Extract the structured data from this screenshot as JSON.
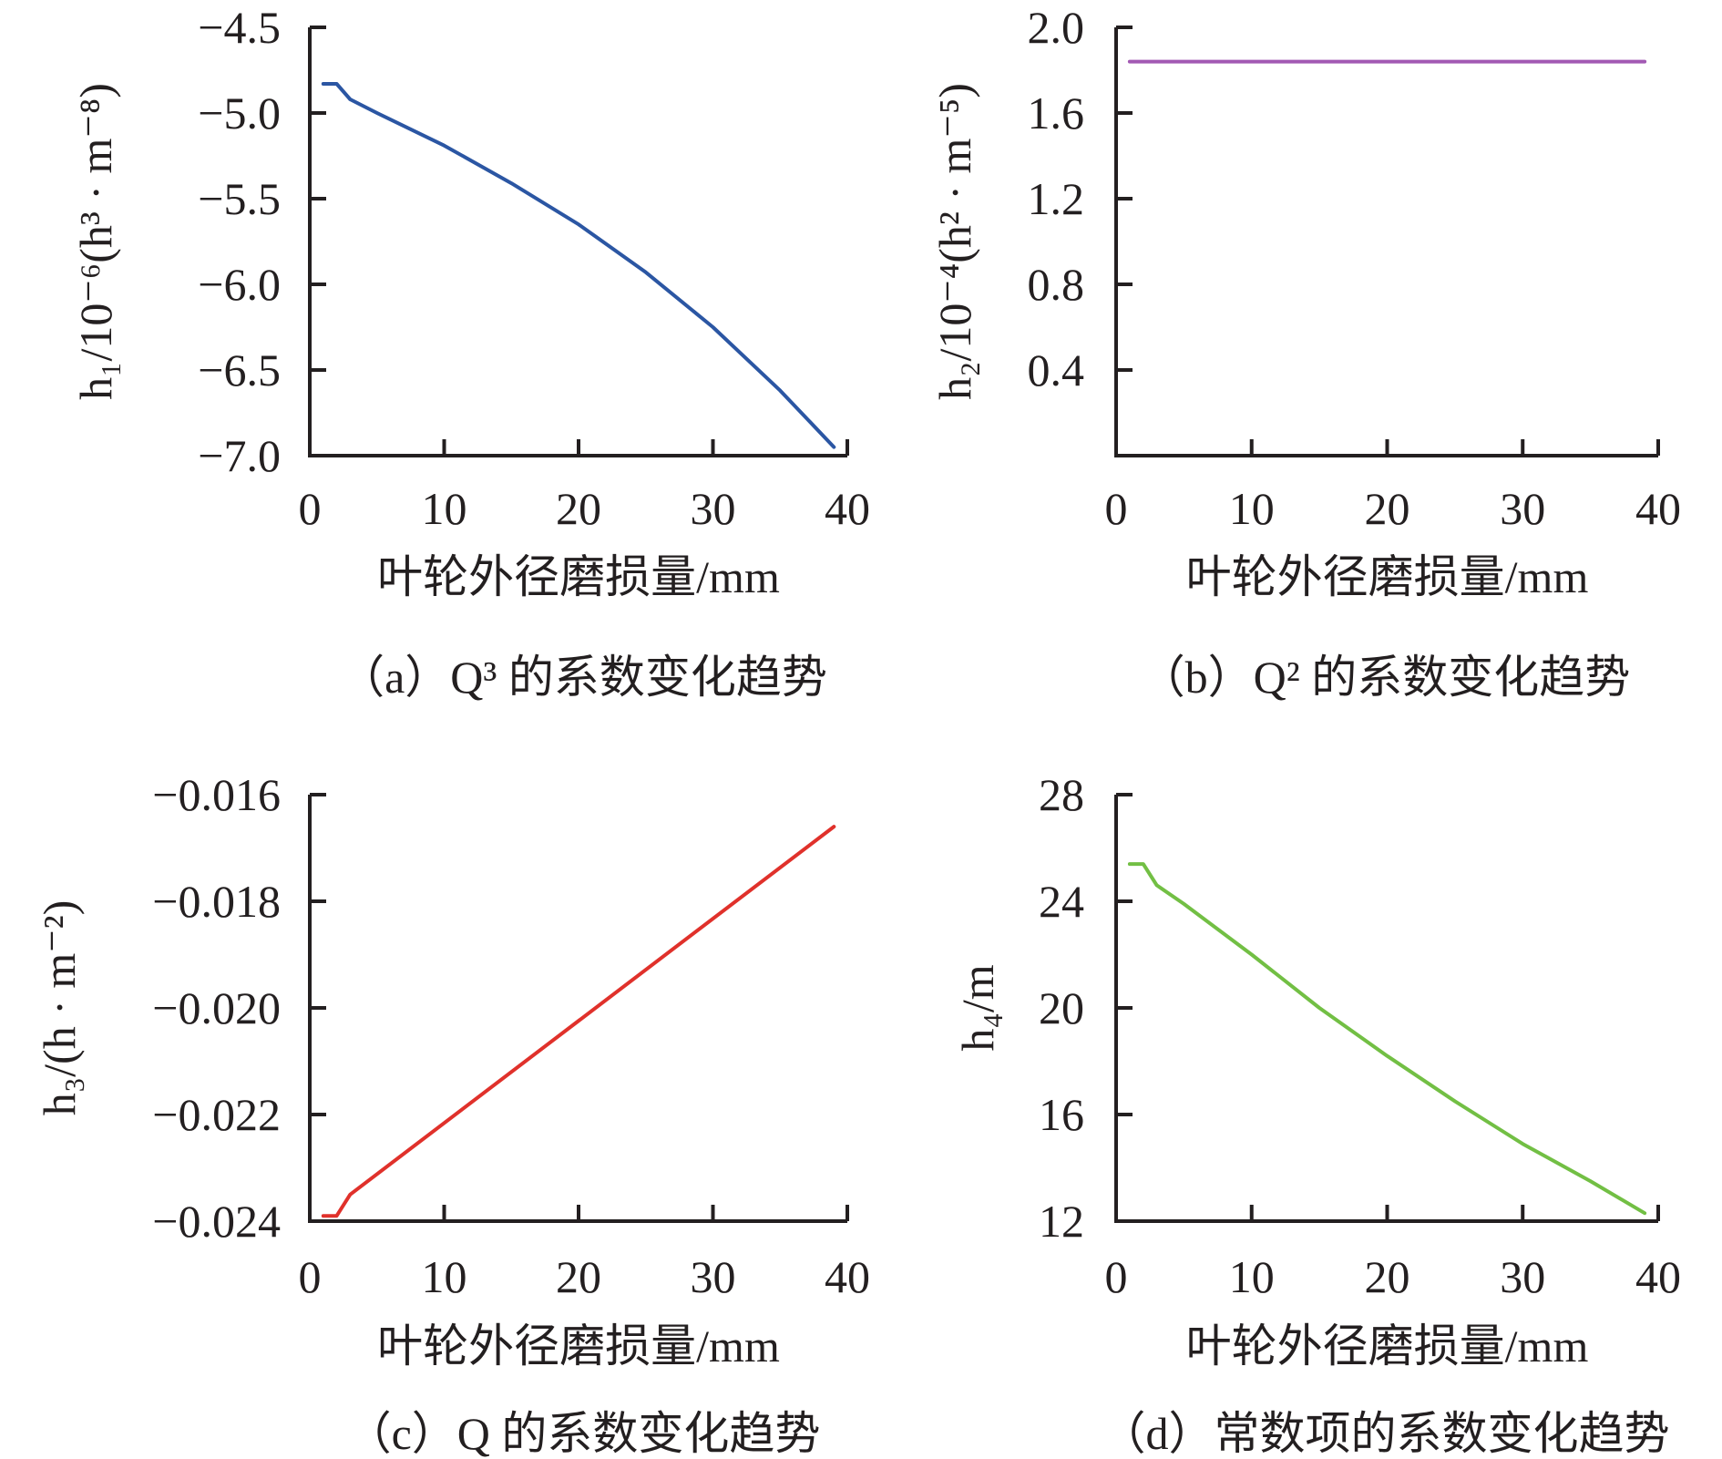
{
  "figure": {
    "xaxis_unit_label": "叶轮外径磨损量/mm"
  },
  "chart_data": [
    {
      "id": "a",
      "type": "line",
      "caption": "（a）Q³ 的系数变化趋势",
      "ylabel": "h₁/10⁻⁶(h³ · m⁻⁸)",
      "xlabel": "叶轮外径磨损量/mm",
      "xlim": [
        0,
        40
      ],
      "ylim": [
        -7.0,
        -4.5
      ],
      "xticks": [
        0,
        10,
        20,
        30,
        40
      ],
      "yticks": [
        -7.0,
        -6.5,
        -6.0,
        -5.5,
        -5.0,
        -4.5
      ],
      "ytick_labels": [
        "−7.0",
        "−6.5",
        "−6.0",
        "−5.5",
        "−5.0",
        "−4.5"
      ],
      "grid": false,
      "series": [
        {
          "color": "#2b56a3",
          "x": [
            1,
            2,
            3,
            5,
            10,
            15,
            20,
            25,
            30,
            35,
            39
          ],
          "y": [
            -4.83,
            -4.83,
            -4.92,
            -5.0,
            -5.19,
            -5.41,
            -5.65,
            -5.93,
            -6.25,
            -6.62,
            -6.95
          ]
        }
      ]
    },
    {
      "id": "b",
      "type": "line",
      "caption": "（b）Q² 的系数变化趋势",
      "ylabel": "h₂/10⁻⁴(h² · m⁻⁵)",
      "xlabel": "叶轮外径磨损量/mm",
      "xlim": [
        0,
        40
      ],
      "ylim": [
        0,
        2.0
      ],
      "xticks": [
        0,
        10,
        20,
        30,
        40
      ],
      "yticks": [
        0.4,
        0.8,
        1.2,
        1.6,
        2.0
      ],
      "ytick_labels": [
        "0.4",
        "0.8",
        "1.2",
        "1.6",
        "2.0"
      ],
      "grid": false,
      "series": [
        {
          "color": "#a259b3",
          "x": [
            1,
            39
          ],
          "y": [
            1.84,
            1.84
          ]
        }
      ]
    },
    {
      "id": "c",
      "type": "line",
      "caption": "（c）Q 的系数变化趋势",
      "ylabel": "h₃/(h · m⁻²)",
      "xlabel": "叶轮外径磨损量/mm",
      "xlim": [
        0,
        40
      ],
      "ylim": [
        -0.024,
        -0.016
      ],
      "xticks": [
        0,
        10,
        20,
        30,
        40
      ],
      "yticks": [
        -0.024,
        -0.022,
        -0.02,
        -0.018,
        -0.016
      ],
      "ytick_labels": [
        "−0.024",
        "−0.022",
        "−0.020",
        "−0.018",
        "−0.016"
      ],
      "grid": false,
      "series": [
        {
          "color": "#e0312b",
          "x": [
            1,
            2,
            3,
            39
          ],
          "y": [
            -0.0239,
            -0.0239,
            -0.0235,
            -0.0166
          ]
        }
      ]
    },
    {
      "id": "d",
      "type": "line",
      "caption": "（d）常数项的系数变化趋势",
      "ylabel": "h₄/m",
      "xlabel": "叶轮外径磨损量/mm",
      "xlim": [
        0,
        40
      ],
      "ylim": [
        12,
        28
      ],
      "xticks": [
        0,
        10,
        20,
        30,
        40
      ],
      "yticks": [
        12,
        16,
        20,
        24,
        28
      ],
      "ytick_labels": [
        "12",
        "16",
        "20",
        "24",
        "28"
      ],
      "grid": false,
      "series": [
        {
          "color": "#72bf44",
          "x": [
            1,
            2,
            3,
            5,
            10,
            15,
            20,
            25,
            30,
            35,
            39
          ],
          "y": [
            25.4,
            25.4,
            24.6,
            23.9,
            22.0,
            20.0,
            18.2,
            16.5,
            14.9,
            13.5,
            12.3
          ]
        }
      ]
    }
  ]
}
